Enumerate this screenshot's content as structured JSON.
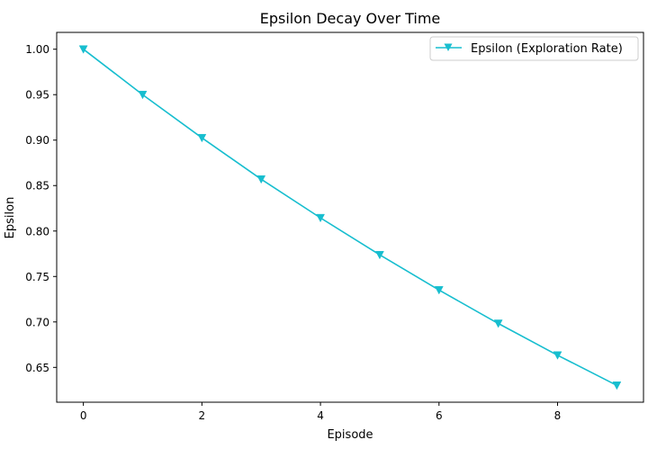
{
  "chart_data": {
    "type": "line",
    "title": "Epsilon Decay Over Time",
    "xlabel": "Episode",
    "ylabel": "Epsilon",
    "x": [
      0,
      1,
      2,
      3,
      4,
      5,
      6,
      7,
      8,
      9
    ],
    "series": [
      {
        "name": "Epsilon (Exploration Rate)",
        "values": [
          1.0,
          0.95,
          0.9025,
          0.857,
          0.8145,
          0.7738,
          0.7351,
          0.6983,
          0.6634,
          0.6302
        ],
        "color": "#17becf",
        "marker": "triangle-down"
      }
    ],
    "xlim": [
      -0.45,
      9.45
    ],
    "ylim": [
      0.6117,
      1.0185
    ],
    "xticks": [
      0,
      2,
      4,
      6,
      8
    ],
    "xtick_labels": [
      "0",
      "2",
      "4",
      "6",
      "8"
    ],
    "yticks": [
      0.65,
      0.7,
      0.75,
      0.8,
      0.85,
      0.9,
      0.95,
      1.0
    ],
    "ytick_labels": [
      "0.65",
      "0.70",
      "0.75",
      "0.80",
      "0.85",
      "0.90",
      "0.95",
      "1.00"
    ],
    "grid": false,
    "legend_position": "upper right"
  }
}
